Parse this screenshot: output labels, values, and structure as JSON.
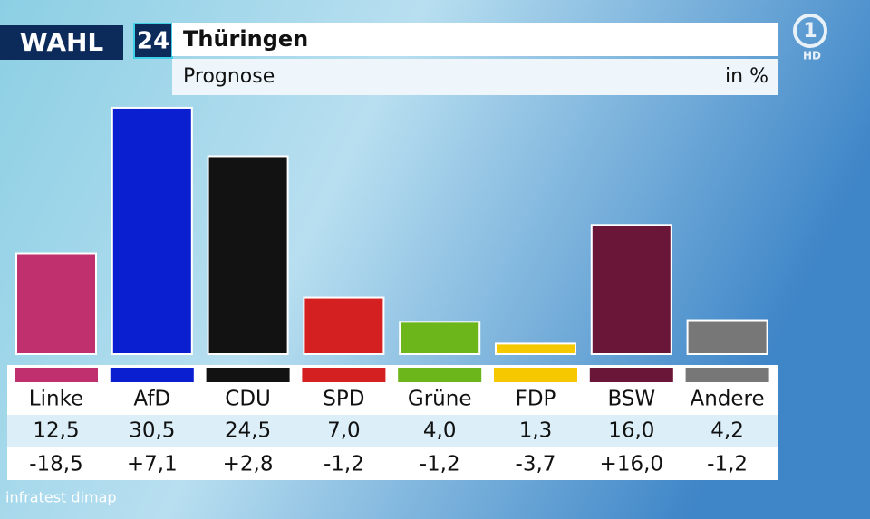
{
  "chart_data": {
    "type": "bar",
    "brand": "WAHL",
    "brand_number": "24",
    "title": "Thüringen",
    "subtitle": "Prognose",
    "unit_note": "in %",
    "logo": "1",
    "logo_badge": "HD",
    "categories": [
      "Linke",
      "AfD",
      "CDU",
      "SPD",
      "Grüne",
      "FDP",
      "BSW",
      "Andere"
    ],
    "values": [
      12.5,
      30.5,
      24.5,
      7.0,
      4.0,
      1.3,
      16.0,
      4.2
    ],
    "value_labels": [
      "12,5",
      "30,5",
      "24,5",
      "7,0",
      "4,0",
      "1,3",
      "16,0",
      "4,2"
    ],
    "colors": [
      "#c0306e",
      "#0a1fd0",
      "#121212",
      "#d42020",
      "#6cb61c",
      "#f5c800",
      "#6a1638",
      "#777777"
    ],
    "changes": [
      -18.5,
      7.1,
      2.8,
      -1.2,
      -1.2,
      -3.7,
      16.0,
      -1.2
    ],
    "change_labels": [
      "-18,5",
      "+7,1",
      "+2,8",
      "-1,2",
      "-1,2",
      "-3,7",
      "+16,0",
      "-1,2"
    ],
    "source": "infratest dimap"
  }
}
